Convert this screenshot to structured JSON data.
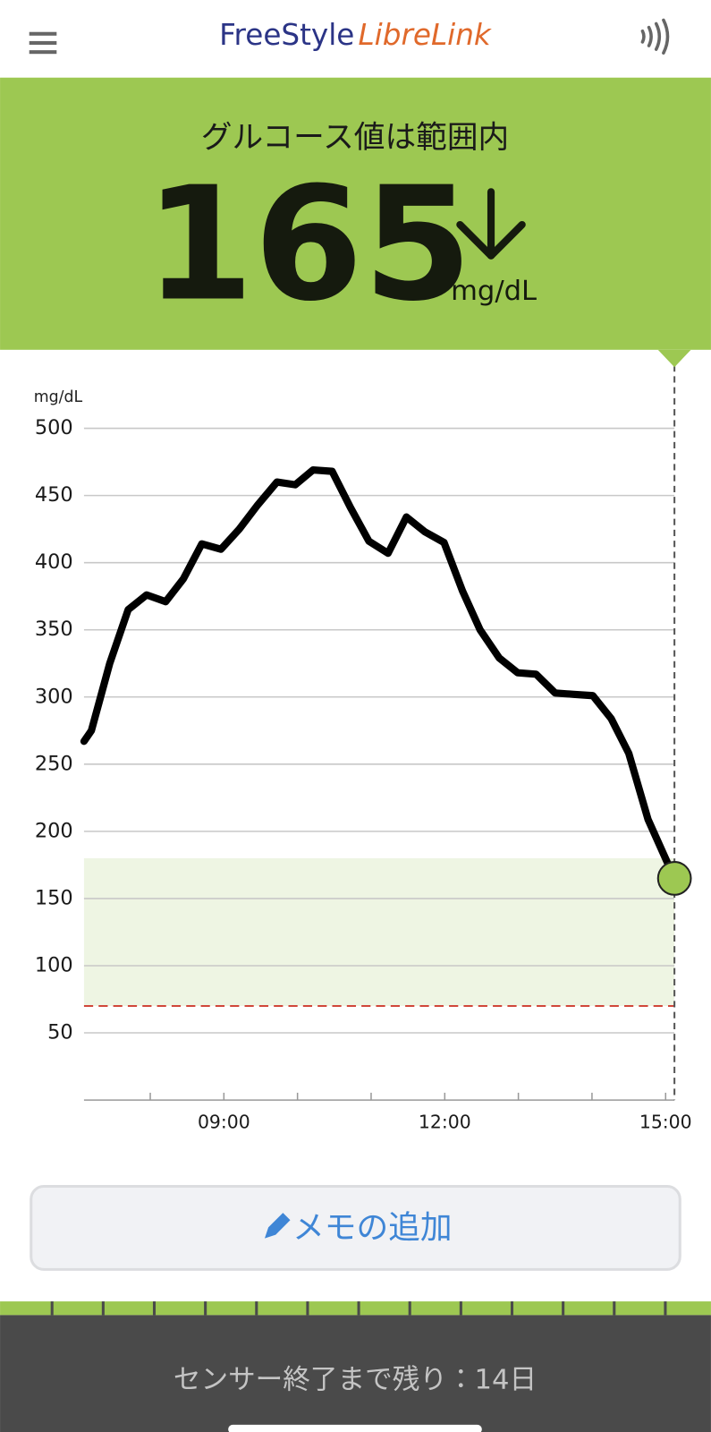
{
  "header": {
    "logo_first": "FreeStyle",
    "logo_second": "LibreLink"
  },
  "banner": {
    "status": "グルコース値は範囲内",
    "value": 165,
    "unit": "mg/dL"
  },
  "chart_data": {
    "type": "line",
    "y_label": "mg/dL",
    "x": [
      7.1,
      7.2,
      7.45,
      7.7,
      7.95,
      8.21,
      8.45,
      8.7,
      8.96,
      9.21,
      9.46,
      9.72,
      9.97,
      10.21,
      10.47,
      10.72,
      10.97,
      11.23,
      11.48,
      11.73,
      11.99,
      12.24,
      12.48,
      12.74,
      12.99,
      13.24,
      13.5,
      13.75,
      14.01,
      14.26,
      14.5,
      14.76,
      15.12
    ],
    "series": [
      {
        "color": "#000000",
        "values": [
          267,
          275,
          325,
          365,
          376,
          371,
          388,
          414,
          410,
          425,
          443,
          460,
          458,
          469,
          468,
          441,
          416,
          407,
          434,
          423,
          415,
          379,
          350,
          329,
          318,
          317,
          303,
          302,
          301,
          284,
          258,
          209,
          165
        ]
      }
    ],
    "current_color": "#9dc852",
    "xlim": [
      7.1,
      15.12
    ],
    "ylim": [
      0,
      500
    ],
    "yticks": [
      50,
      100,
      150,
      200,
      250,
      300,
      350,
      400,
      450,
      500
    ],
    "xticks": [
      {
        "value": 9,
        "label": "09:00"
      },
      {
        "value": 12,
        "label": "12:00"
      },
      {
        "value": 15,
        "label": "15:00"
      }
    ],
    "minor_xticks": [
      8,
      10,
      11,
      13,
      14
    ],
    "grid": true,
    "target_range": [
      70,
      180
    ],
    "target_color": "#eef5e3",
    "low_line": 70,
    "low_color": "#d0473a"
  },
  "memo_button": "メモの追加",
  "footer": "センサー終了まで残り：14日"
}
